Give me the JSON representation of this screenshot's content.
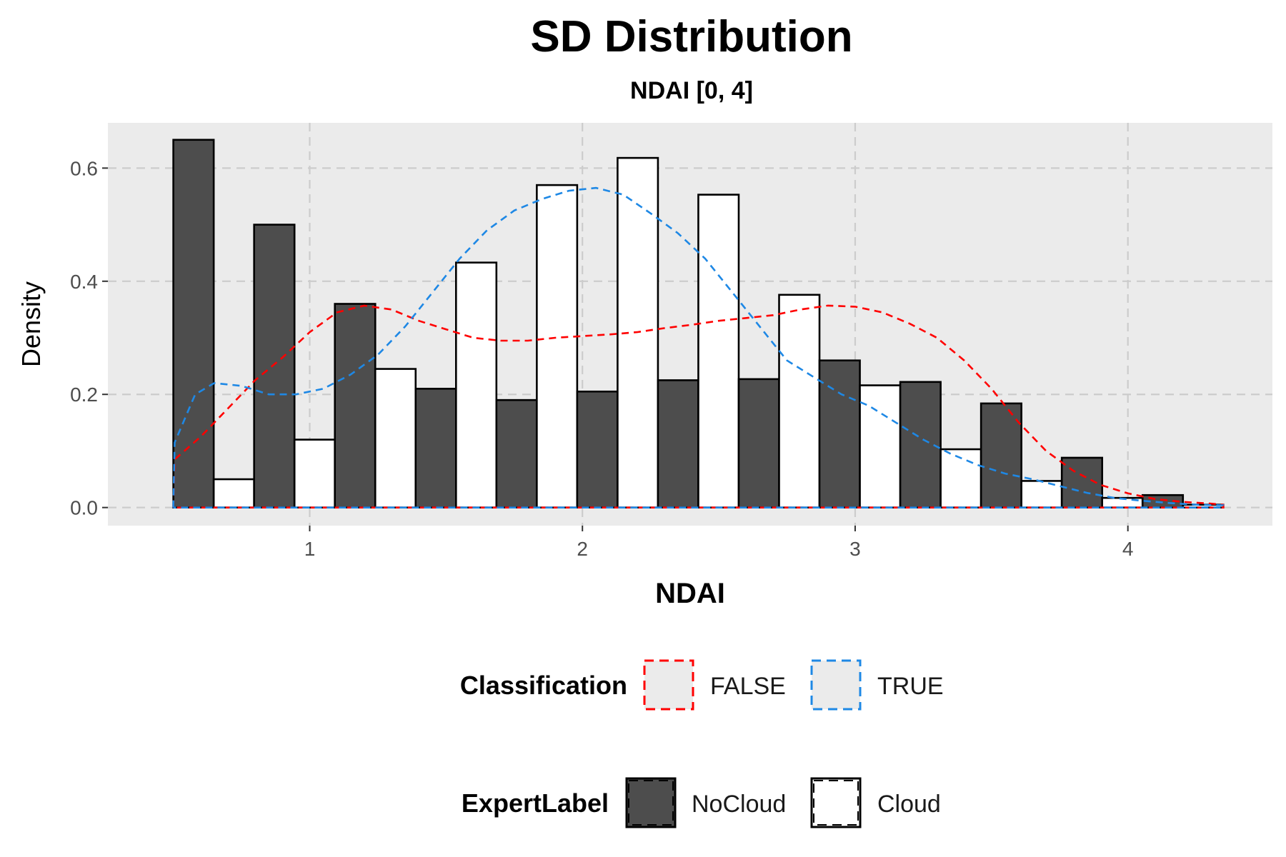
{
  "chart_data": {
    "type": "bar",
    "title": "SD Distribution",
    "subtitle": "NDAI [0, 4]",
    "xlabel": "NDAI",
    "ylabel": "Density",
    "xlim": [
      0.26,
      4.53
    ],
    "ylim": [
      -0.032,
      0.68
    ],
    "x_ticks": [
      1,
      2,
      3,
      4
    ],
    "y_ticks": [
      0.0,
      0.2,
      0.4,
      0.6
    ],
    "y_tick_labels": [
      "0.0",
      "0.2",
      "0.4",
      "0.6"
    ],
    "grid": true,
    "legend_position": "bottom",
    "bars": {
      "x_start": 0.5,
      "x_end": 4.35,
      "bin_count": 13,
      "groups": [
        {
          "name": "NoCloud",
          "fill": "#4d4d4d",
          "values": [
            0.65,
            0.5,
            0.36,
            0.21,
            0.19,
            0.205,
            0.225,
            0.227,
            0.26,
            0.222,
            0.184,
            0.088,
            0.022
          ]
        },
        {
          "name": "Cloud",
          "fill": "#ffffff",
          "values": [
            0.05,
            0.12,
            0.245,
            0.433,
            0.57,
            0.618,
            0.553,
            0.376,
            0.216,
            0.103,
            0.047,
            0.017,
            0.005
          ]
        }
      ]
    },
    "density_curves": [
      {
        "name": "FALSE",
        "color": "#ff0000",
        "points": [
          [
            0.5,
            0.0
          ],
          [
            0.505,
            0.085
          ],
          [
            0.6,
            0.125
          ],
          [
            0.7,
            0.175
          ],
          [
            0.8,
            0.225
          ],
          [
            0.9,
            0.265
          ],
          [
            1.0,
            0.31
          ],
          [
            1.1,
            0.345
          ],
          [
            1.2,
            0.357
          ],
          [
            1.3,
            0.35
          ],
          [
            1.4,
            0.33
          ],
          [
            1.5,
            0.315
          ],
          [
            1.6,
            0.3
          ],
          [
            1.7,
            0.295
          ],
          [
            1.8,
            0.295
          ],
          [
            1.9,
            0.3
          ],
          [
            2.0,
            0.303
          ],
          [
            2.1,
            0.306
          ],
          [
            2.2,
            0.31
          ],
          [
            2.3,
            0.317
          ],
          [
            2.4,
            0.323
          ],
          [
            2.5,
            0.33
          ],
          [
            2.6,
            0.335
          ],
          [
            2.7,
            0.34
          ],
          [
            2.8,
            0.35
          ],
          [
            2.9,
            0.357
          ],
          [
            3.0,
            0.355
          ],
          [
            3.1,
            0.345
          ],
          [
            3.2,
            0.325
          ],
          [
            3.3,
            0.3
          ],
          [
            3.4,
            0.26
          ],
          [
            3.5,
            0.21
          ],
          [
            3.6,
            0.15
          ],
          [
            3.7,
            0.1
          ],
          [
            3.8,
            0.065
          ],
          [
            3.9,
            0.04
          ],
          [
            4.0,
            0.025
          ],
          [
            4.1,
            0.015
          ],
          [
            4.2,
            0.01
          ],
          [
            4.3,
            0.007
          ],
          [
            4.35,
            0.005
          ],
          [
            4.35,
            0.0
          ]
        ]
      },
      {
        "name": "TRUE",
        "color": "#1e88e5",
        "points": [
          [
            0.5,
            0.0
          ],
          [
            0.505,
            0.115
          ],
          [
            0.58,
            0.2
          ],
          [
            0.65,
            0.22
          ],
          [
            0.75,
            0.215
          ],
          [
            0.85,
            0.2
          ],
          [
            0.95,
            0.2
          ],
          [
            1.05,
            0.21
          ],
          [
            1.15,
            0.235
          ],
          [
            1.25,
            0.27
          ],
          [
            1.35,
            0.32
          ],
          [
            1.45,
            0.38
          ],
          [
            1.55,
            0.44
          ],
          [
            1.65,
            0.49
          ],
          [
            1.75,
            0.525
          ],
          [
            1.85,
            0.545
          ],
          [
            1.95,
            0.56
          ],
          [
            2.05,
            0.565
          ],
          [
            2.15,
            0.553
          ],
          [
            2.25,
            0.52
          ],
          [
            2.35,
            0.485
          ],
          [
            2.45,
            0.44
          ],
          [
            2.55,
            0.38
          ],
          [
            2.65,
            0.32
          ],
          [
            2.75,
            0.26
          ],
          [
            2.85,
            0.23
          ],
          [
            2.95,
            0.2
          ],
          [
            3.05,
            0.18
          ],
          [
            3.15,
            0.15
          ],
          [
            3.25,
            0.12
          ],
          [
            3.35,
            0.095
          ],
          [
            3.45,
            0.075
          ],
          [
            3.55,
            0.06
          ],
          [
            3.65,
            0.05
          ],
          [
            3.75,
            0.038
          ],
          [
            3.85,
            0.026
          ],
          [
            3.95,
            0.017
          ],
          [
            4.05,
            0.012
          ],
          [
            4.15,
            0.008
          ],
          [
            4.25,
            0.005
          ],
          [
            4.35,
            0.004
          ],
          [
            4.35,
            0.0
          ]
        ]
      }
    ],
    "legends": [
      {
        "title": "Classification",
        "items": [
          {
            "label": "FALSE",
            "color": "#ff0000"
          },
          {
            "label": "TRUE",
            "color": "#1e88e5"
          }
        ]
      },
      {
        "title": "ExpertLabel",
        "items": [
          {
            "label": "NoCloud",
            "fill": "#4d4d4d"
          },
          {
            "label": "Cloud",
            "fill": "#ffffff"
          }
        ]
      }
    ]
  }
}
